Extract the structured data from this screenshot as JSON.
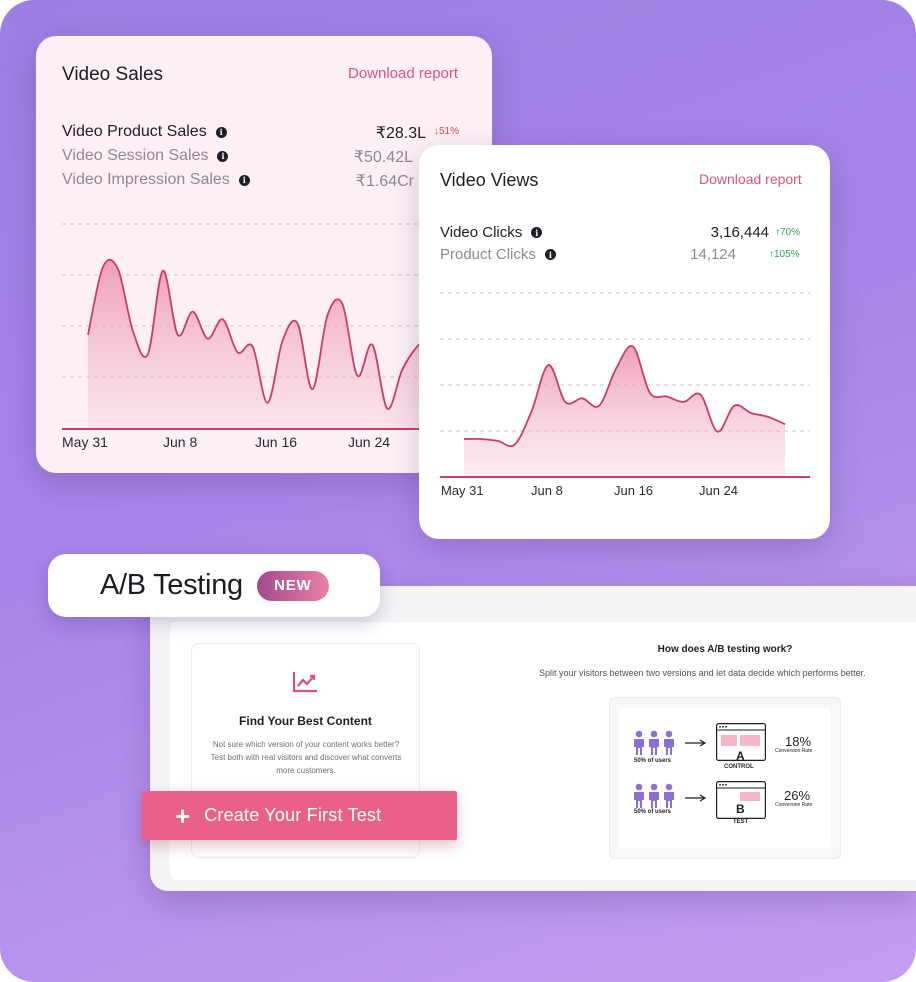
{
  "video_sales": {
    "title": "Video Sales",
    "download_label": "Download report",
    "metrics": [
      {
        "label": "Video Product Sales",
        "value": "₹28.3L",
        "delta": "51%",
        "trend": "down"
      },
      {
        "label": "Video Session Sales",
        "value": "₹50.42L"
      },
      {
        "label": "Video Impression Sales",
        "value": "₹1.64Cr"
      }
    ],
    "x_ticks": [
      "May 31",
      "Jun 8",
      "Jun 16",
      "Jun 24"
    ],
    "accent": "#d6547f"
  },
  "video_views": {
    "title": "Video Views",
    "download_label": "Download report",
    "metrics": [
      {
        "label": "Video Clicks",
        "value": "3,16,444",
        "delta": "70%",
        "trend": "up"
      },
      {
        "label": "Product Clicks",
        "value": "14,124",
        "delta": "105%",
        "trend": "up"
      }
    ],
    "x_ticks": [
      "May 31",
      "Jun 8",
      "Jun 16",
      "Jun 24"
    ]
  },
  "chart_data": [
    {
      "type": "area",
      "series": [
        {
          "values": [
            48,
            83,
            82,
            50,
            38,
            81,
            48,
            60,
            46,
            56,
            39,
            42,
            13,
            45,
            54,
            20,
            58,
            64,
            27,
            43,
            10,
            30,
            42,
            48,
            50,
            52,
            55,
            70
          ]
        }
      ],
      "x_ticks": [
        "May 31",
        "Jun 8",
        "Jun 16",
        "Jun 24"
      ],
      "grid": true
    },
    {
      "type": "area",
      "series": [
        {
          "values": [
            20,
            20,
            19,
            17,
            35,
            60,
            40,
            42,
            38,
            58,
            70,
            45,
            43,
            40,
            44,
            24,
            38,
            34,
            32,
            28
          ]
        }
      ],
      "x_ticks": [
        "May 31",
        "Jun 8",
        "Jun 16",
        "Jun 24"
      ],
      "grid": true
    }
  ],
  "ab_testing": {
    "title": "A/B Testing",
    "badge": "NEW",
    "find_title": "Find Your Best Content",
    "find_desc": "Not sure which version of your content works better? Test both with real visitors and discover what converts more customers.",
    "cta_label": "Create Your First Test",
    "how_title": "How does A/B testing work?",
    "how_sub": "Split your visitors between two versions and let data decide which performs better.",
    "diagram": {
      "users_label": "50% of users",
      "control": {
        "letter": "A",
        "label": "CONTROL",
        "rate": "18%",
        "rate_label": "Conversion Rate"
      },
      "test": {
        "letter": "B",
        "label": "TEST",
        "rate": "26%",
        "rate_label": "Conversion Rate"
      }
    },
    "cta_color": "#e96189"
  }
}
